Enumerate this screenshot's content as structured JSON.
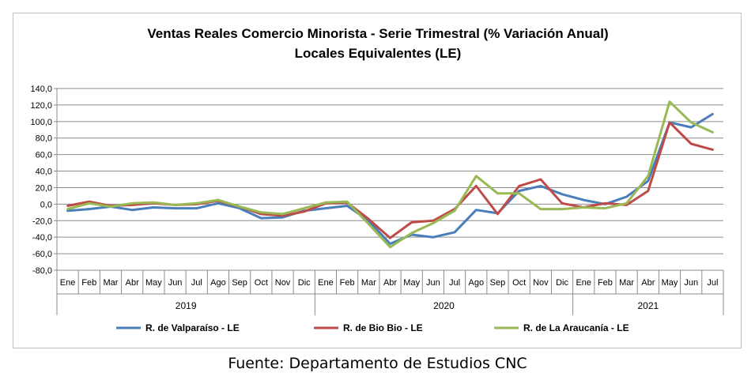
{
  "source_text": "Fuente: Departamento de Estudios CNC",
  "chart_data": {
    "type": "line",
    "title_line1": "Ventas Reales Comercio Minorista - Serie Trimestral (% Variación Anual)",
    "title_line2": "Locales Equivalentes (LE)",
    "categories": [
      "Ene",
      "Feb",
      "Mar",
      "Abr",
      "May",
      "Jun",
      "Jul",
      "Ago",
      "Sep",
      "Oct",
      "Nov",
      "Dic",
      "Ene",
      "Feb",
      "Mar",
      "Abr",
      "May",
      "Jun",
      "Jul",
      "Ago",
      "Sep",
      "Oct",
      "Nov",
      "Dic",
      "Ene",
      "Feb",
      "Mar",
      "Abr",
      "May",
      "Jun",
      "Jul"
    ],
    "year_groups": [
      {
        "label": "2019",
        "count": 12
      },
      {
        "label": "2020",
        "count": 12
      },
      {
        "label": "2021",
        "count": 7
      }
    ],
    "ylim": [
      -80,
      140
    ],
    "ytick_step": 20,
    "ytick_labels": [
      "140,0",
      "120,0",
      "100,0",
      "80,0",
      "60,0",
      "40,0",
      "20,0",
      "0,0",
      "-20,0",
      "-40,0",
      "-60,0",
      "-80,0"
    ],
    "grid": true,
    "legend_position": "bottom",
    "series": [
      {
        "name": "R. de Valparaíso - LE",
        "color": "#4a7ebb",
        "values": [
          -8,
          -6,
          -3,
          -7,
          -4,
          -5,
          -5,
          1,
          -5,
          -17,
          -16,
          -8,
          -5,
          -2,
          -20,
          -48,
          -37,
          -40,
          -34,
          -7,
          -11,
          16,
          22,
          12,
          5,
          0,
          9,
          28,
          99,
          93,
          109
        ]
      },
      {
        "name": "R. de Bio Bio - LE",
        "color": "#be4b48",
        "values": [
          -2,
          3,
          -2,
          -1,
          1,
          -1,
          0,
          4,
          -3,
          -12,
          -14,
          -9,
          1,
          2,
          -18,
          -41,
          -22,
          -20,
          -6,
          22,
          -12,
          22,
          30,
          1,
          -4,
          1,
          -1,
          16,
          99,
          73,
          66
        ]
      },
      {
        "name": "R. de La Araucanía - LE",
        "color": "#98b954",
        "values": [
          -6,
          1,
          -3,
          1,
          2,
          -1,
          1,
          5,
          -3,
          -10,
          -12,
          -5,
          2,
          3,
          -24,
          -52,
          -35,
          -23,
          -8,
          34,
          13,
          13,
          -6,
          -6,
          -4,
          -5,
          1,
          34,
          124,
          99,
          87
        ]
      }
    ]
  }
}
